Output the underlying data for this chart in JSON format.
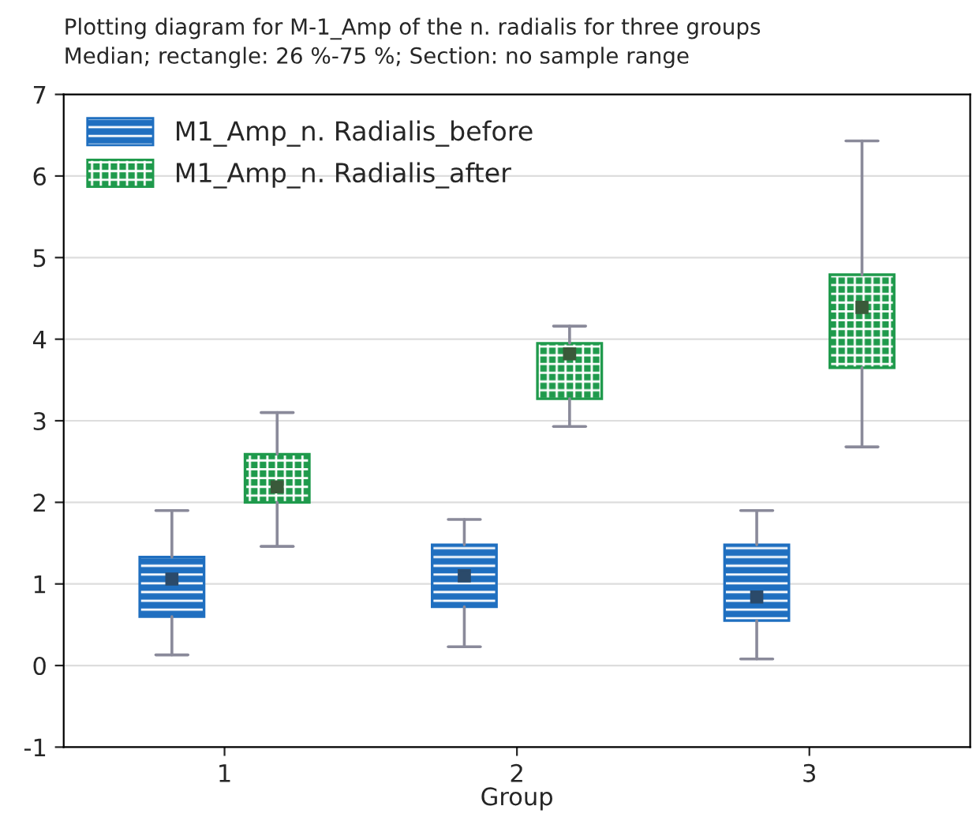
{
  "chart_data": {
    "type": "box",
    "title": "Plotting diagram for M-1_Amp of the n. radialis for three groups",
    "subtitle": "Median; rectangle: 26 %-75 %; Section: no sample range",
    "xlabel": "Group",
    "categories": [
      "1",
      "2",
      "3"
    ],
    "ylim": [
      -1,
      7
    ],
    "yticks": [
      -1,
      0,
      1,
      2,
      3,
      4,
      5,
      6,
      7
    ],
    "grid": "y",
    "legend": "top left",
    "marker": "square",
    "series": [
      {
        "name": "M1_Amp_n. Radialis_before",
        "color": "#1f6fc0",
        "boxes": [
          {
            "low": 0.13,
            "q1": 0.6,
            "median": 1.06,
            "q3": 1.33,
            "high": 1.9
          },
          {
            "low": 0.23,
            "q1": 0.72,
            "median": 1.1,
            "q3": 1.48,
            "high": 1.79
          },
          {
            "low": 0.08,
            "q1": 0.55,
            "median": 0.84,
            "q3": 1.48,
            "high": 1.9
          }
        ]
      },
      {
        "name": "M1_Amp_n. Radialis_after",
        "color": "#1f9a4c",
        "boxes": [
          {
            "low": 1.46,
            "q1": 2.0,
            "median": 2.19,
            "q3": 2.59,
            "high": 3.1
          },
          {
            "low": 2.93,
            "q1": 3.27,
            "median": 3.82,
            "q3": 3.95,
            "high": 4.16
          },
          {
            "low": 2.68,
            "q1": 3.65,
            "median": 4.39,
            "q3": 4.79,
            "high": 6.43
          }
        ]
      }
    ]
  }
}
